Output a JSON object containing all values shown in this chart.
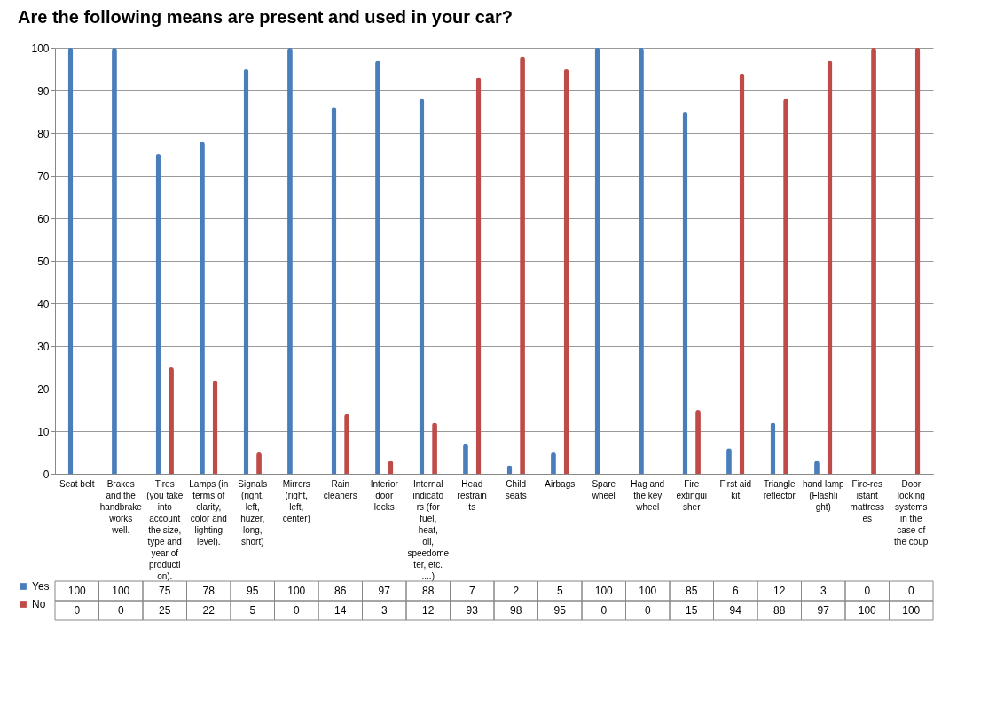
{
  "chart_data": {
    "type": "bar",
    "title": "Are the following means are present and used in your car?",
    "categories": [
      "Seat belt",
      "Brakes and the handbrake works well.",
      "Tires (you take into account the size, type and year of production).",
      "Lamps (in terms of clarity, color and lighting level).",
      "Signals (right, left, huzer, long, short)",
      "Mirrors (right, left, center)",
      "Rain cleaners",
      "Interior door locks",
      "Internal indicators (for fuel, heat, oil, speedometer, etc. ....)",
      "Head restraints",
      "Child seats",
      "Airbags",
      "Spare wheel",
      "Hag and the key wheel",
      "Fire extinguisher",
      "First aid kit",
      "Triangle reflector",
      "hand lamp (Flashlight)",
      "Fire-resistant mattresses",
      "Door locking systems in the case of the coup"
    ],
    "series": [
      {
        "name": "Yes",
        "color": "#4a7ebb",
        "values": [
          100,
          100,
          75,
          78,
          95,
          100,
          86,
          97,
          88,
          7,
          2,
          5,
          100,
          100,
          85,
          6,
          12,
          3,
          0,
          0
        ]
      },
      {
        "name": "No",
        "color": "#be4b48",
        "values": [
          0,
          0,
          25,
          22,
          5,
          0,
          14,
          3,
          12,
          93,
          98,
          95,
          0,
          0,
          15,
          94,
          88,
          97,
          100,
          100
        ]
      }
    ],
    "ylim": [
      0,
      100
    ],
    "yticks": [
      0,
      10,
      20,
      30,
      40,
      50,
      60,
      70,
      80,
      90,
      100
    ],
    "grid": "y",
    "legend": "bottom left",
    "data_labels": true
  }
}
